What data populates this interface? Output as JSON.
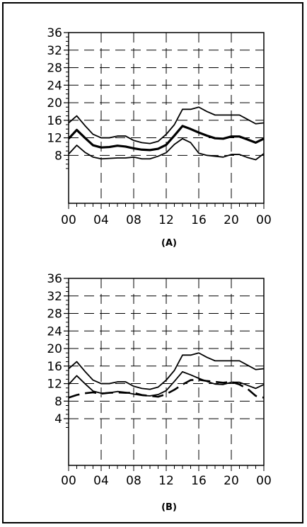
{
  "chart_data": [
    {
      "type": "line",
      "caption": "(A)",
      "x": [
        0,
        1,
        2,
        3,
        4,
        5,
        6,
        7,
        8,
        9,
        10,
        11,
        12,
        13,
        14,
        15,
        16,
        17,
        18,
        19,
        20,
        21,
        22,
        23,
        24
      ],
      "x_tick_labels": [
        "00",
        "04",
        "08",
        "12",
        "16",
        "20",
        "00"
      ],
      "ylim": [
        4,
        36
      ],
      "y_tick_labels": [
        "8",
        "12",
        "16",
        "20",
        "24",
        "28",
        "32",
        "36"
      ],
      "grid": true,
      "series": [
        {
          "style": "solid-thin",
          "values": [
            15.4,
            17.0,
            14.8,
            12.8,
            12.0,
            12.0,
            12.4,
            12.4,
            11.4,
            10.9,
            10.7,
            11.2,
            12.8,
            15.0,
            18.5,
            18.5,
            19.0,
            18.0,
            17.2,
            17.2,
            17.2,
            17.2,
            16.2,
            15.2,
            15.4
          ]
        },
        {
          "style": "solid-thick",
          "values": [
            11.8,
            13.8,
            12.0,
            10.3,
            9.8,
            9.9,
            10.2,
            10.0,
            9.6,
            9.3,
            9.2,
            9.5,
            10.4,
            12.5,
            14.7,
            14.0,
            13.2,
            12.5,
            11.9,
            11.8,
            12.3,
            12.3,
            11.6,
            10.9,
            11.8
          ]
        },
        {
          "style": "solid-thin",
          "values": [
            8.3,
            10.3,
            8.7,
            7.6,
            7.2,
            7.3,
            7.4,
            7.4,
            7.6,
            7.2,
            7.2,
            7.8,
            8.6,
            10.5,
            11.8,
            10.9,
            8.5,
            8.0,
            7.8,
            7.6,
            8.2,
            8.2,
            7.5,
            7.0,
            8.4
          ]
        }
      ]
    },
    {
      "type": "line",
      "caption": "(B)",
      "x": [
        0,
        1,
        2,
        3,
        4,
        5,
        6,
        7,
        8,
        9,
        10,
        11,
        12,
        13,
        14,
        15,
        16,
        17,
        18,
        19,
        20,
        21,
        22,
        23,
        24
      ],
      "x_tick_labels": [
        "00",
        "04",
        "08",
        "12",
        "16",
        "20",
        "00"
      ],
      "ylim": [
        2,
        36
      ],
      "y_tick_labels": [
        "4",
        "8",
        "12",
        "16",
        "20",
        "24",
        "28",
        "32",
        "36"
      ],
      "grid": true,
      "series": [
        {
          "style": "solid",
          "values": [
            15.4,
            17.0,
            14.8,
            12.8,
            12.0,
            12.0,
            12.4,
            12.4,
            11.4,
            10.9,
            10.7,
            11.2,
            12.8,
            15.0,
            18.5,
            18.5,
            19.0,
            18.0,
            17.2,
            17.2,
            17.2,
            17.2,
            16.2,
            15.2,
            15.4
          ]
        },
        {
          "style": "solid",
          "values": [
            11.8,
            13.8,
            12.0,
            10.3,
            9.8,
            9.9,
            10.2,
            10.0,
            9.6,
            9.3,
            9.2,
            9.5,
            10.4,
            12.5,
            14.7,
            14.0,
            13.2,
            12.5,
            11.9,
            11.8,
            12.3,
            12.3,
            11.6,
            10.9,
            11.8
          ]
        },
        {
          "style": "dashed",
          "values": [
            8.8,
            9.4,
            9.8,
            10.0,
            9.7,
            9.9,
            10.0,
            9.9,
            9.9,
            9.4,
            9.2,
            9.0,
            9.6,
            10.6,
            11.8,
            12.8,
            12.9,
            12.6,
            12.4,
            12.2,
            12.4,
            11.8,
            10.8,
            9.2,
            8.8
          ]
        }
      ]
    }
  ]
}
